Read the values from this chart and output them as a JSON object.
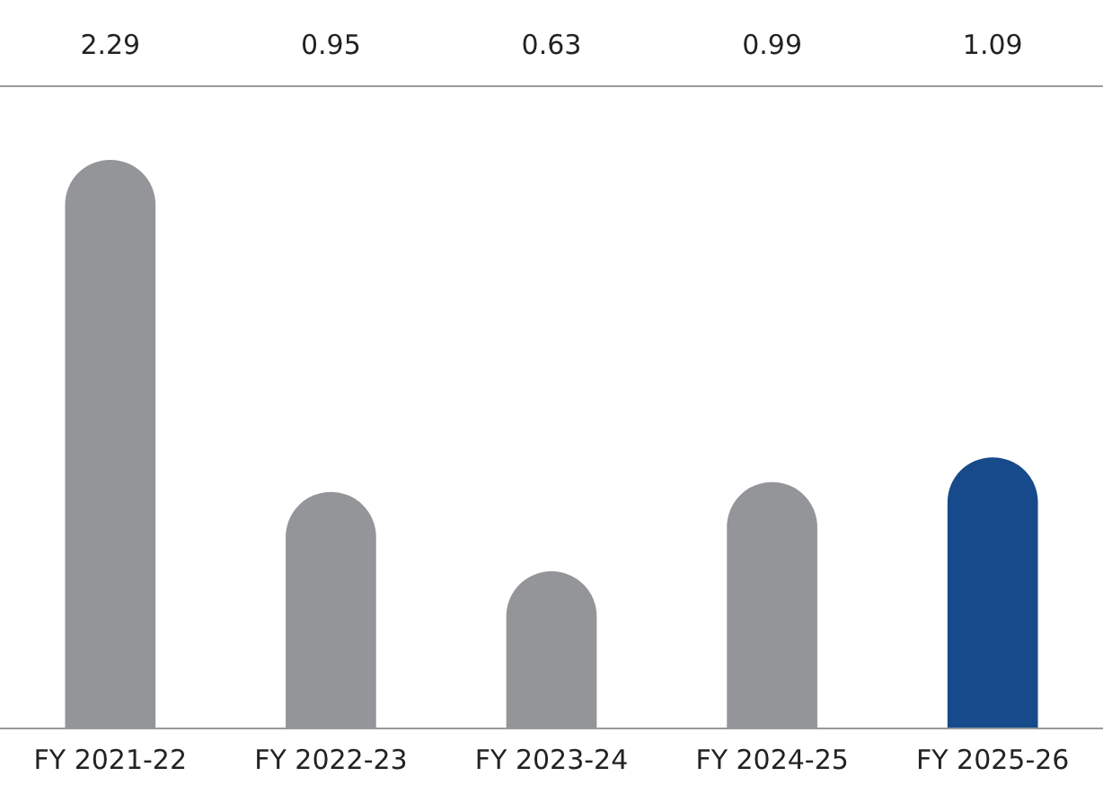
{
  "chart_data": {
    "type": "bar",
    "categories": [
      "FY 2021-22",
      "FY 2022-23",
      "FY 2023-24",
      "FY 2024-25",
      "FY 2025-26"
    ],
    "values": [
      2.29,
      0.95,
      0.63,
      0.99,
      1.09
    ],
    "colors": [
      "#939598",
      "#939598",
      "#939598",
      "#939598",
      "#174a8b"
    ],
    "data_labels": true,
    "grid": false,
    "legend": false,
    "tick_labels": "x"
  }
}
